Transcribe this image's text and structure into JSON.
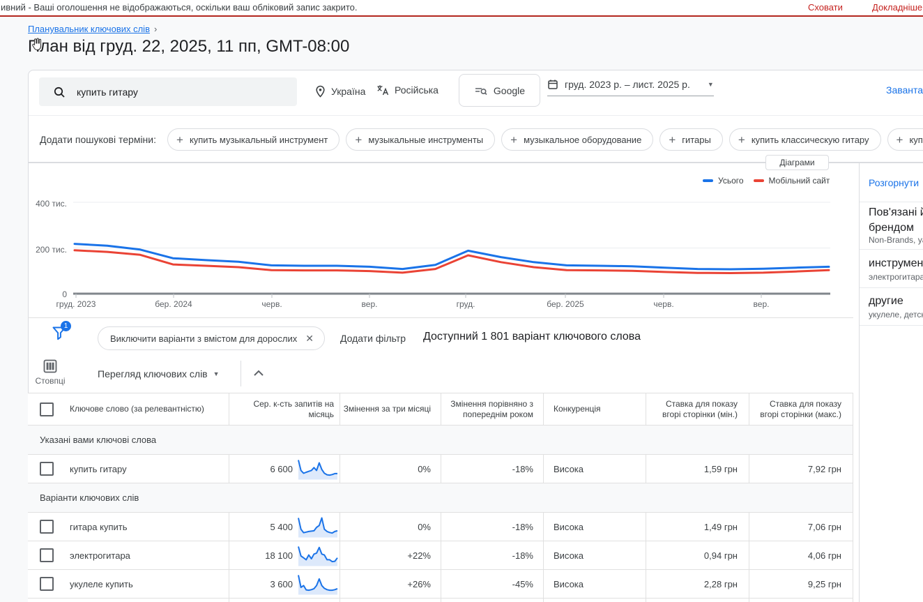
{
  "banner": {
    "message": "ивний - Ваші оголошення не відображаються, оскільки ваш обліковий запис закрито.",
    "hide_label": "Сховати",
    "more_label": "Докладніше"
  },
  "header": {
    "breadcrumb": "Планувальник ключових слів",
    "chevron": "›",
    "title": "План від груд. 22, 2025, 11 пп, GMT-08:00"
  },
  "toolbar": {
    "search_value": "купить гитару",
    "location": "Україна",
    "language": "Російська",
    "network": "Google",
    "date_range": "груд. 2023 р. – лист. 2025 р.",
    "download_label": "Завантажити"
  },
  "search_terms": {
    "label": "Додати пошукові терміни:",
    "chips": [
      "купить музыкальный инструмент",
      "музыкальные инструменты",
      "музыкальное оборудование",
      "гитары",
      "купить классическую гитару",
      "купить"
    ]
  },
  "chart_section": {
    "diagrams_button": "Діаграми"
  },
  "chart_data": {
    "type": "line",
    "x_interval": "monthly",
    "x_range": "груд. 2023 – лист. 2025",
    "x_tick_labels": [
      "груд. 2023",
      "бер. 2024",
      "черв.",
      "вер.",
      "груд.",
      "бер. 2025",
      "черв.",
      "вер."
    ],
    "y_tick_labels": [
      "0",
      "200 тис.",
      "400 тис."
    ],
    "ylim_thousands": [
      0,
      400
    ],
    "grid": true,
    "legend_position": "top-right",
    "series": [
      {
        "name": "Усього",
        "color": "#1a73e8",
        "values_thousands": [
          218,
          210,
          193,
          155,
          147,
          140,
          124,
          122,
          122,
          118,
          108,
          126,
          188,
          160,
          138,
          124,
          122,
          120,
          114,
          108,
          107,
          109,
          114,
          118
        ]
      },
      {
        "name": "Мобільний сайт",
        "color": "#ea4335",
        "values_thousands": [
          190,
          183,
          170,
          128,
          122,
          116,
          103,
          102,
          102,
          99,
          92,
          108,
          168,
          138,
          116,
          103,
          102,
          100,
          95,
          91,
          90,
          92,
          97,
          103
        ]
      }
    ]
  },
  "refine_panel": {
    "expand_label": "Розгорнути",
    "items": [
      {
        "title": "Пов'язані й брендом",
        "subtitle": "Non-Brands, ya"
      },
      {
        "title": "инструменты",
        "subtitle": "электрогитара"
      },
      {
        "title": "другие",
        "subtitle": "укулеле, детск"
      }
    ]
  },
  "filter_bar": {
    "badge_count": "1",
    "filter_chip": "Виключити варіанти з вмістом для дорослих",
    "add_filter_label": "Додати фільтр",
    "available_text": "Доступний 1 801 варіант ключового слова"
  },
  "table_toolbar": {
    "columns_label": "Стовпці",
    "view_selector": "Перегляд ключових слів"
  },
  "table": {
    "headers": [
      "Ключове слово (за релевантністю)",
      "Сер. к-сть запитів на місяць",
      "Змінення за три місяці",
      "Змінення порівняно з попереднім роком",
      "Конкуренція",
      "Ставка для показу вгорі сторінки (мін.)",
      "Ставка для показу вгорі сторінки (макс.)"
    ],
    "sections": [
      {
        "label": "Указані вами ключові слова",
        "rows": [
          {
            "keyword": "купить гитару",
            "avg_monthly_searches": "6 600",
            "trend": [
              10,
              4.5,
              3,
              3.5,
              4,
              4.5,
              6,
              4.5,
              8.5,
              5,
              3,
              2.2,
              2,
              2.3,
              2.8,
              2.8
            ],
            "three_month_change": "0%",
            "yoy_change": "-18%",
            "competition": "Висока",
            "top_bid_low": "1,59 грн",
            "top_bid_high": "7,92 грн"
          }
        ]
      },
      {
        "label": "Варіанти ключових слів",
        "rows": [
          {
            "keyword": "гитара купить",
            "avg_monthly_searches": "5 400",
            "trend": [
              10,
              4,
              2.2,
              2.5,
              2.8,
              3,
              3.2,
              5,
              6,
              10,
              4,
              2.8,
              2.3,
              2,
              2.8,
              3.2
            ],
            "three_month_change": "0%",
            "yoy_change": "-18%",
            "competition": "Висока",
            "top_bid_low": "1,49 грн",
            "top_bid_high": "7,06 грн"
          },
          {
            "keyword": "электрогитара",
            "avg_monthly_searches": "18 100",
            "trend": [
              10,
              5,
              4,
              3,
              5.5,
              3.5,
              6,
              6.5,
              9.5,
              6,
              5.5,
              3,
              3,
              2,
              2.2,
              4
            ],
            "three_month_change": "+22%",
            "yoy_change": "-18%",
            "competition": "Висока",
            "top_bid_low": "0,94 грн",
            "top_bid_high": "4,06 грн"
          },
          {
            "keyword": "укулеле купить",
            "avg_monthly_searches": "3 600",
            "trend": [
              10,
              3.5,
              4.5,
              2.2,
              2,
              2.3,
              2.8,
              4.5,
              8,
              4.5,
              3,
              2.3,
              2,
              2,
              2.3,
              2.8
            ],
            "three_month_change": "+26%",
            "yoy_change": "-45%",
            "competition": "Висока",
            "top_bid_low": "2,28 грн",
            "top_bid_high": "9,25 грн"
          }
        ]
      }
    ]
  }
}
